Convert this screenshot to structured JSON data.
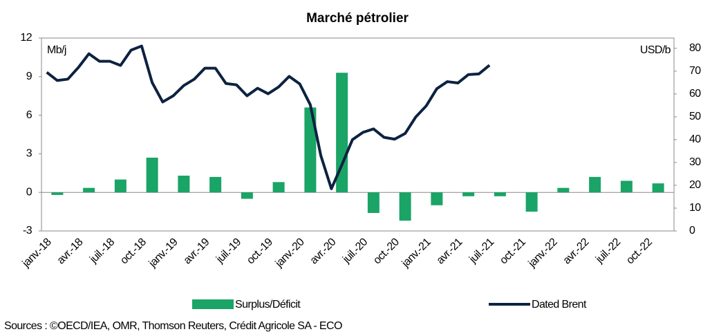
{
  "chart_data": {
    "type": "bar-line",
    "title": "Marché pétrolier",
    "y_label": "Mb/j",
    "y2_label": "USD/b",
    "source": "Sources : ©OECD/IEA,  OMR,  Thomson Reuters, Crédit Agricole SA - ECO",
    "categories": [
      "janv.-18",
      null,
      null,
      "avr.-18",
      null,
      null,
      "juil.-18",
      null,
      null,
      "oct.-18",
      null,
      null,
      "janv.-19",
      null,
      null,
      "avr.-19",
      null,
      null,
      "juil.-19",
      null,
      null,
      "oct.-19",
      null,
      null,
      "janv.-20",
      null,
      null,
      "avr.-20",
      null,
      null,
      "juil.-20",
      null,
      null,
      "oct.-20",
      null,
      null,
      "janv.-21",
      null,
      null,
      "avr.-21",
      null,
      null,
      "juil.-21",
      null,
      null,
      "oct.-21",
      null,
      null,
      "janv.-22",
      null,
      null,
      "avr.-22",
      null,
      null,
      "juil.-22",
      null,
      null,
      "oct.-22",
      null,
      null
    ],
    "series": [
      {
        "name": "Surplus/Déficit",
        "type": "bar",
        "color": "#1aa466",
        "values": [
          null,
          -0.2,
          null,
          null,
          0.35,
          null,
          null,
          1.0,
          null,
          null,
          2.7,
          null,
          null,
          1.3,
          null,
          null,
          1.2,
          null,
          null,
          -0.5,
          null,
          null,
          0.8,
          null,
          null,
          6.6,
          null,
          null,
          9.3,
          null,
          null,
          -1.6,
          null,
          null,
          -2.2,
          null,
          null,
          -1.0,
          null,
          null,
          -0.3,
          null,
          null,
          -0.3,
          null,
          null,
          -1.5,
          null,
          null,
          0.35,
          null,
          null,
          1.2,
          null,
          null,
          0.9,
          null,
          null,
          0.7,
          null
        ]
      },
      {
        "name": "Dated Brent",
        "type": "line",
        "axis": "y2",
        "color": "#0d2240",
        "values": [
          69.5,
          65.9,
          66.5,
          71.6,
          77.6,
          74.3,
          74.3,
          72.5,
          79.2,
          81.0,
          65.0,
          56.5,
          59.2,
          63.7,
          66.5,
          71.3,
          71.3,
          64.6,
          64.0,
          59.2,
          62.5,
          60.1,
          63.1,
          67.7,
          64.4,
          55.3,
          33.0,
          18.5,
          29.0,
          40.0,
          43.2,
          44.7,
          41.0,
          40.2,
          42.7,
          49.9,
          54.8,
          62.3,
          65.4,
          64.8,
          68.5,
          68.8,
          72.6,
          null,
          null,
          null,
          null,
          null,
          null,
          null,
          null,
          null,
          null,
          null,
          null,
          null,
          null,
          null,
          null,
          null
        ]
      }
    ],
    "ylim": [
      -3,
      12
    ],
    "yticks": [
      -3,
      0,
      3,
      6,
      9,
      12
    ],
    "y2lim": [
      0,
      84.5
    ],
    "y2ticks": [
      0,
      10,
      20,
      30,
      40,
      50,
      60,
      70,
      80
    ]
  }
}
